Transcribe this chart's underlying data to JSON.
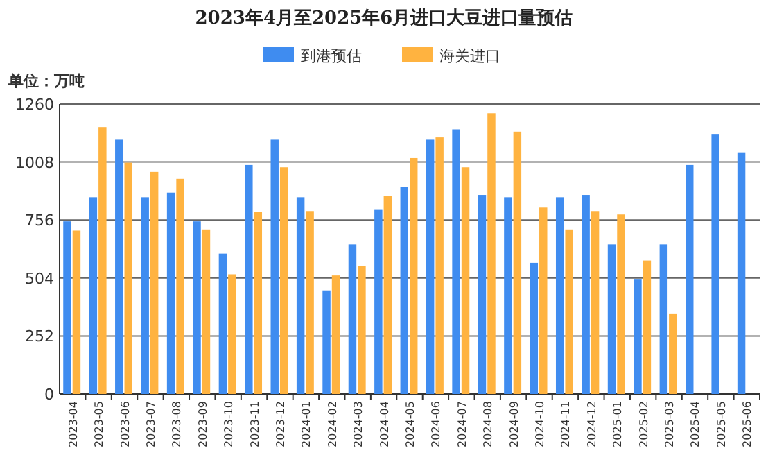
{
  "chart_data": {
    "type": "bar",
    "title": "2023年4月至2025年6月进口大豆进口量预估",
    "ylabel": "单位：万吨",
    "categories": [
      "2023-04",
      "2023-05",
      "2023-06",
      "2023-07",
      "2023-08",
      "2023-09",
      "2023-10",
      "2023-11",
      "2023-12",
      "2024-01",
      "2024-02",
      "2024-03",
      "2024-04",
      "2024-05",
      "2024-06",
      "2024-07",
      "2024-08",
      "2024-09",
      "2024-10",
      "2024-11",
      "2024-12",
      "2025-01",
      "2025-02",
      "2025-03",
      "2025-04",
      "2025-05",
      "2025-06"
    ],
    "series": [
      {
        "name": "到港预估",
        "color": "#3f8cf0",
        "values": [
          750,
          855,
          1105,
          855,
          875,
          750,
          610,
          995,
          1105,
          855,
          450,
          650,
          800,
          900,
          1105,
          1150,
          865,
          855,
          570,
          855,
          865,
          650,
          500,
          650,
          995,
          1130,
          1050
        ]
      },
      {
        "name": "海关进口",
        "color": "#ffb340",
        "values": [
          710,
          1160,
          1005,
          965,
          935,
          715,
          520,
          790,
          985,
          795,
          515,
          555,
          860,
          1025,
          1115,
          985,
          1220,
          1140,
          810,
          715,
          795,
          780,
          580,
          350,
          null,
          null,
          null
        ]
      }
    ],
    "ylim": [
      0,
      1260
    ],
    "yticks": [
      0,
      252,
      504,
      756,
      1008,
      1260
    ],
    "grid": "y",
    "legend": "top"
  }
}
